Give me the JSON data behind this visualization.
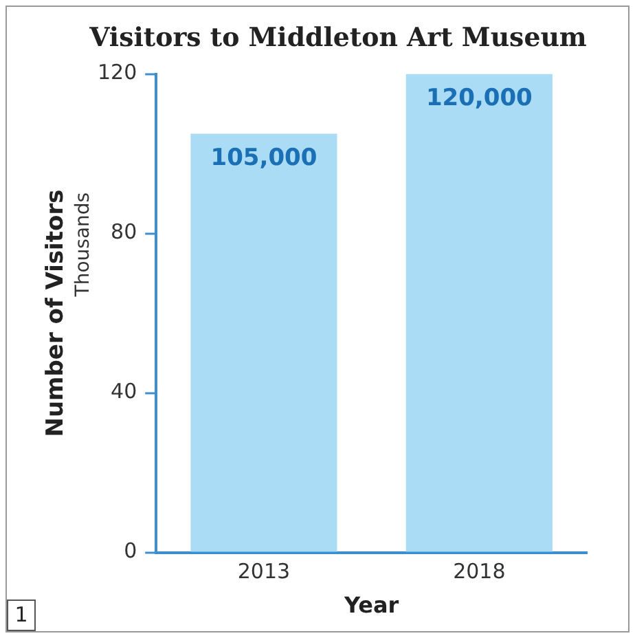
{
  "chart_data": {
    "type": "bar",
    "title": "Visitors to Middleton Art Museum",
    "xlabel": "Year",
    "ylabel": "Number of Visitors",
    "annotations": [
      "Thousands",
      "1",
      {
        "text": "105,000",
        "x": "2013",
        "y": 105
      },
      {
        "text": "120,000",
        "x": "2018",
        "y": 120
      }
    ],
    "categories": [
      "2013",
      "2018"
    ],
    "values": [
      105,
      120
    ],
    "color": "#aadcf5",
    "ylim": [
      0,
      120
    ],
    "yticks": [
      0,
      40,
      80,
      120
    ],
    "grid": false,
    "legend": false
  }
}
